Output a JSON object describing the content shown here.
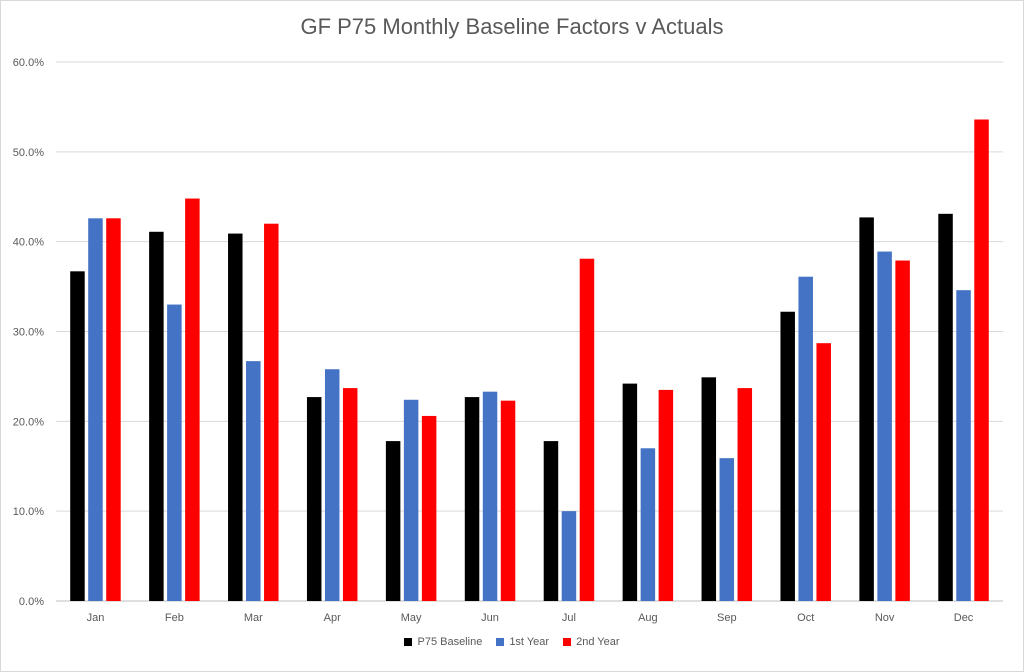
{
  "chart_data": {
    "type": "bar",
    "title": "GF P75 Monthly Baseline Factors v Actuals",
    "xlabel": "",
    "ylabel": "",
    "categories": [
      "Jan",
      "Feb",
      "Mar",
      "Apr",
      "May",
      "Jun",
      "Jul",
      "Aug",
      "Sep",
      "Oct",
      "Nov",
      "Dec"
    ],
    "series": [
      {
        "name": "P75 Baseline",
        "color": "#000000",
        "values": [
          36.7,
          41.1,
          40.9,
          22.7,
          17.8,
          22.7,
          17.8,
          24.2,
          24.9,
          32.2,
          42.7,
          43.1
        ]
      },
      {
        "name": "1st Year",
        "color": "#4472c4",
        "values": [
          42.6,
          33.0,
          26.7,
          25.8,
          22.4,
          23.3,
          10.0,
          17.0,
          15.9,
          36.1,
          38.9,
          34.6
        ]
      },
      {
        "name": "2nd Year",
        "color": "#ff0000",
        "values": [
          42.6,
          44.8,
          42.0,
          23.7,
          20.6,
          22.3,
          38.1,
          23.5,
          23.7,
          28.7,
          37.9,
          53.6
        ]
      }
    ],
    "ylim": [
      0,
      60
    ],
    "yticks": [
      "0.0%",
      "10.0%",
      "20.0%",
      "30.0%",
      "40.0%",
      "50.0%",
      "60.0%"
    ],
    "grid": true,
    "legend_position": "bottom"
  }
}
